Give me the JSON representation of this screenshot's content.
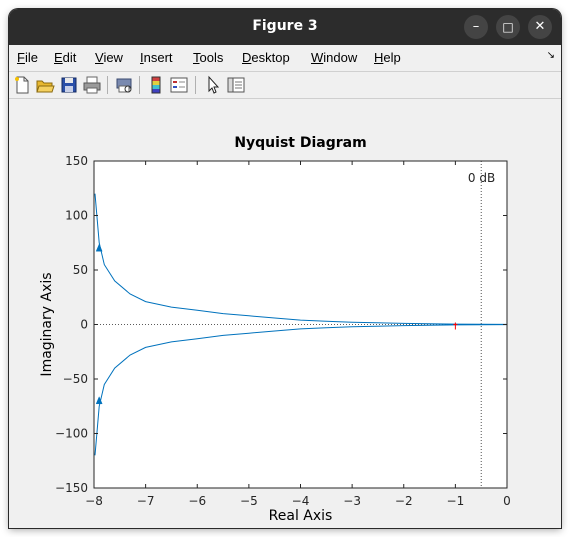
{
  "window": {
    "title": "Figure 3",
    "minimize_glyph": "–",
    "maximize_glyph": "□",
    "close_glyph": "✕"
  },
  "menu": [
    {
      "label": "File",
      "mnemonic": "F",
      "rest": "ile"
    },
    {
      "label": "Edit",
      "mnemonic": "E",
      "rest": "dit"
    },
    {
      "label": "View",
      "mnemonic": "V",
      "rest": "iew"
    },
    {
      "label": "Insert",
      "mnemonic": "I",
      "rest": "nsert"
    },
    {
      "label": "Tools",
      "mnemonic": "T",
      "rest": "ools"
    },
    {
      "label": "Desktop",
      "mnemonic": "D",
      "rest": "esktop"
    },
    {
      "label": "Window",
      "mnemonic": "W",
      "rest": "indow"
    },
    {
      "label": "Help",
      "mnemonic": "H",
      "rest": "elp"
    }
  ],
  "menu_corner_glyph": "↘",
  "toolbar": {
    "icons": [
      "new-figure-icon",
      "open-file-icon",
      "save-icon",
      "print-icon",
      "print-preview-icon",
      "colorbar-icon",
      "legend-icon",
      "edit-plot-arrow-icon",
      "property-inspector-icon"
    ]
  },
  "chart_data": {
    "type": "line",
    "title": "Nyquist Diagram",
    "xlabel": "Real Axis",
    "ylabel": "Imaginary Axis",
    "xlim": [
      -8,
      0
    ],
    "ylim": [
      -150,
      150
    ],
    "xticks": [
      -8,
      -7,
      -6,
      -5,
      -4,
      -3,
      -2,
      -1,
      0
    ],
    "yticks": [
      -150,
      -100,
      -50,
      0,
      50,
      100,
      150
    ],
    "grid": false,
    "annotation": "0 dB",
    "zero_db_line_x": -0.5,
    "critical_point": [
      -1,
      0
    ],
    "series": [
      {
        "branch": "positive-frequency",
        "points": [
          [
            -7.98,
            120
          ],
          [
            -7.9,
            75
          ],
          [
            -7.8,
            55
          ],
          [
            -7.6,
            40
          ],
          [
            -7.3,
            28
          ],
          [
            -7.0,
            21
          ],
          [
            -6.5,
            16
          ],
          [
            -6.0,
            13
          ],
          [
            -5.5,
            10
          ],
          [
            -5.0,
            8
          ],
          [
            -4.5,
            6
          ],
          [
            -4.0,
            4
          ],
          [
            -3.5,
            3
          ],
          [
            -3.0,
            2
          ],
          [
            -2.0,
            1
          ],
          [
            -1.0,
            0.4
          ],
          [
            0.0,
            0.05
          ]
        ],
        "arrow_at": [
          -7.9,
          70
        ]
      },
      {
        "branch": "negative-frequency",
        "points": [
          [
            -7.98,
            -120
          ],
          [
            -7.9,
            -75
          ],
          [
            -7.8,
            -55
          ],
          [
            -7.6,
            -40
          ],
          [
            -7.3,
            -28
          ],
          [
            -7.0,
            -21
          ],
          [
            -6.5,
            -16
          ],
          [
            -6.0,
            -13
          ],
          [
            -5.5,
            -10
          ],
          [
            -5.0,
            -8
          ],
          [
            -4.5,
            -6
          ],
          [
            -4.0,
            -4
          ],
          [
            -3.5,
            -3
          ],
          [
            -3.0,
            -2
          ],
          [
            -2.0,
            -1
          ],
          [
            -1.0,
            -0.4
          ],
          [
            0.0,
            -0.05
          ]
        ],
        "arrow_at": [
          -7.9,
          -70
        ]
      }
    ],
    "colors": {
      "curve": "#0072bd",
      "critical": "#ff0000",
      "axes": "#262626"
    }
  }
}
